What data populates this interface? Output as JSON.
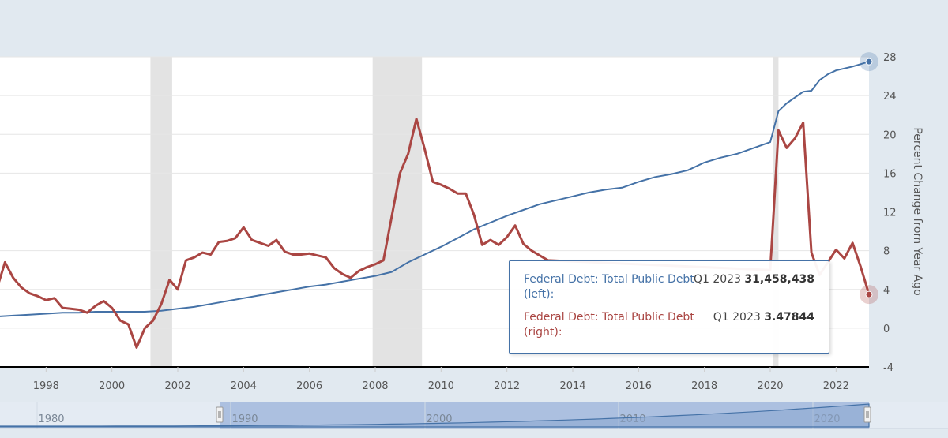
{
  "chart_data": {
    "type": "line",
    "xlim": [
      1996.6,
      2023.0
    ],
    "x_ticks": [
      1998,
      2000,
      2002,
      2004,
      2006,
      2008,
      2010,
      2012,
      2014,
      2016,
      2018,
      2020,
      2022
    ],
    "right_axis": {
      "label": "Percent Change from Year Ago",
      "ylim": [
        -4,
        28
      ],
      "ticks": [
        -4,
        0,
        4,
        8,
        12,
        16,
        20,
        24,
        28
      ]
    },
    "recessions": [
      [
        2001.17,
        2001.83
      ],
      [
        2007.92,
        2009.42
      ],
      [
        2020.08,
        2020.25
      ]
    ],
    "series": [
      {
        "name": "Federal Debt: Total Public Debt (left)",
        "color": "#4572a7",
        "axis": "left",
        "scale_note": "values read against right-axis scale",
        "x": [
          1996.5,
          1997.0,
          1997.5,
          1998.0,
          1998.5,
          1999.0,
          1999.5,
          2000.0,
          2000.5,
          2001.0,
          2001.5,
          2002.0,
          2002.5,
          2003.0,
          2003.5,
          2004.0,
          2004.5,
          2005.0,
          2005.5,
          2006.0,
          2006.5,
          2007.0,
          2007.5,
          2008.0,
          2008.5,
          2009.0,
          2009.5,
          2010.0,
          2010.5,
          2011.0,
          2011.5,
          2012.0,
          2012.5,
          2013.0,
          2013.5,
          2014.0,
          2014.5,
          2015.0,
          2015.5,
          2016.0,
          2016.5,
          2017.0,
          2017.5,
          2018.0,
          2018.5,
          2019.0,
          2019.5,
          2020.0,
          2020.25,
          2020.5,
          2021.0,
          2021.25,
          2021.5,
          2021.75,
          2022.0,
          2022.5,
          2023.0
        ],
        "y": [
          1.2,
          1.3,
          1.4,
          1.5,
          1.6,
          1.6,
          1.7,
          1.7,
          1.7,
          1.7,
          1.8,
          2.0,
          2.2,
          2.5,
          2.8,
          3.1,
          3.4,
          3.7,
          4.0,
          4.3,
          4.5,
          4.8,
          5.1,
          5.4,
          5.8,
          6.8,
          7.6,
          8.4,
          9.3,
          10.2,
          10.9,
          11.6,
          12.2,
          12.8,
          13.2,
          13.6,
          14.0,
          14.3,
          14.5,
          15.1,
          15.6,
          15.9,
          16.3,
          17.1,
          17.6,
          18.0,
          18.6,
          19.2,
          22.4,
          23.2,
          24.4,
          24.5,
          25.6,
          26.2,
          26.6,
          27.0,
          27.5
        ]
      },
      {
        "name": "Federal Debt: Total Public Debt (right)",
        "color": "#aa4643",
        "axis": "right",
        "x": [
          1996.5,
          1996.75,
          1997.0,
          1997.25,
          1997.5,
          1997.75,
          1998.0,
          1998.25,
          1998.5,
          1998.75,
          1999.0,
          1999.25,
          1999.5,
          1999.75,
          2000.0,
          2000.25,
          2000.5,
          2000.75,
          2001.0,
          2001.25,
          2001.5,
          2001.75,
          2002.0,
          2002.25,
          2002.5,
          2002.75,
          2003.0,
          2003.25,
          2003.5,
          2003.75,
          2004.0,
          2004.25,
          2004.5,
          2004.75,
          2005.0,
          2005.25,
          2005.5,
          2005.75,
          2006.0,
          2006.25,
          2006.5,
          2006.75,
          2007.0,
          2007.25,
          2007.5,
          2007.75,
          2008.0,
          2008.25,
          2008.5,
          2008.75,
          2009.0,
          2009.25,
          2009.5,
          2009.75,
          2010.0,
          2010.25,
          2010.5,
          2010.75,
          2011.0,
          2011.25,
          2011.5,
          2011.75,
          2012.0,
          2012.25,
          2012.5,
          2012.75,
          2013.0,
          2013.25,
          2020.0,
          2020.25,
          2020.5,
          2020.75,
          2021.0,
          2021.25,
          2021.5,
          2021.75,
          2022.0,
          2022.25,
          2022.5,
          2022.75,
          2023.0
        ],
        "y": [
          4.0,
          6.8,
          5.2,
          4.2,
          3.6,
          3.3,
          2.9,
          3.1,
          2.1,
          2.0,
          1.9,
          1.6,
          2.3,
          2.8,
          2.1,
          0.8,
          0.4,
          -2.0,
          0.0,
          0.8,
          2.5,
          5.0,
          4.0,
          7.0,
          7.3,
          7.8,
          7.6,
          8.9,
          9.0,
          9.3,
          10.4,
          9.1,
          8.8,
          8.5,
          9.1,
          7.9,
          7.6,
          7.6,
          7.7,
          7.5,
          7.3,
          6.2,
          5.6,
          5.2,
          5.9,
          6.3,
          6.6,
          7.0,
          11.5,
          16.0,
          18.0,
          21.6,
          18.5,
          15.1,
          14.8,
          14.4,
          13.9,
          13.9,
          11.7,
          8.6,
          9.1,
          8.6,
          9.4,
          10.6,
          8.7,
          8.0,
          7.5,
          7.0,
          6.0,
          20.4,
          18.6,
          19.6,
          21.2,
          7.8,
          5.5,
          6.8,
          8.1,
          7.2,
          8.8,
          6.3,
          3.48
        ]
      }
    ],
    "hover_x": 2023.0,
    "tooltip": {
      "rows": [
        {
          "series": "Federal Debt: Total Public Debt (left):",
          "period": "Q1 2023",
          "value": "31,458,438",
          "color": "#4572a7"
        },
        {
          "series": "Federal Debt: Total Public Debt (right):",
          "period": "Q1 2023",
          "value": "3.47844",
          "color": "#aa4643"
        }
      ]
    },
    "navigator": {
      "tick_labels": [
        "1980",
        "1990",
        "2000",
        "2010",
        "2020"
      ]
    }
  }
}
